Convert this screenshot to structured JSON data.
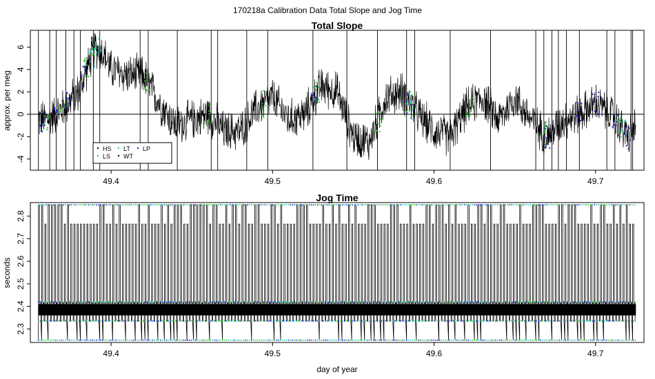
{
  "page_title": "170218a   Calibration Data Total Slope and Jog Time",
  "colors": {
    "HS": "#000000",
    "LS": "#22cc22",
    "LT": "#22cccc",
    "WT": "#000000",
    "LP": "#1a1acc",
    "trace": "#000000"
  },
  "chart_data": [
    {
      "type": "line",
      "title": "Total Slope",
      "xlabel": "",
      "ylabel": "approx. per meg",
      "xlim": [
        49.35,
        49.73
      ],
      "ylim": [
        -5,
        7.5
      ],
      "xticks": [
        49.4,
        49.5,
        49.6,
        49.7
      ],
      "xtick_labels": [
        "49.4",
        "49.5",
        "49.6",
        "49.7"
      ],
      "yticks": [
        -4,
        -2,
        0,
        2,
        4,
        6
      ],
      "ytick_labels": [
        "-4",
        "-2",
        "0",
        "2",
        "4",
        "6"
      ],
      "reference_line_y": 0,
      "legend_position": "bottom-left",
      "legend": [
        {
          "label": "HS",
          "color": "#000000"
        },
        {
          "label": "LS",
          "color": "#22cc22"
        },
        {
          "label": "LT",
          "color": "#22cccc"
        },
        {
          "label": "WT",
          "color": "#000000"
        },
        {
          "label": "LP",
          "color": "#1a1acc"
        }
      ],
      "x_range": [
        49.355,
        49.725
      ],
      "center_curve": {
        "x": [
          49.355,
          49.36,
          49.37,
          49.38,
          49.385,
          49.39,
          49.395,
          49.4,
          49.41,
          49.42,
          49.43,
          49.44,
          49.45,
          49.46,
          49.47,
          49.48,
          49.49,
          49.5,
          49.51,
          49.52,
          49.53,
          49.54,
          49.55,
          49.56,
          49.57,
          49.58,
          49.59,
          49.6,
          49.61,
          49.62,
          49.63,
          49.64,
          49.65,
          49.66,
          49.67,
          49.68,
          49.69,
          49.7,
          49.71,
          49.72,
          49.725
        ],
        "y": [
          -0.5,
          -0.5,
          0.5,
          2.0,
          4.0,
          6.0,
          5.5,
          4.0,
          3.5,
          3.5,
          1.0,
          -1.0,
          -0.5,
          0.0,
          -1.5,
          -1.5,
          0.5,
          1.5,
          -0.5,
          0.0,
          2.5,
          2.0,
          -2.0,
          -2.5,
          1.5,
          2.0,
          0.0,
          -1.5,
          -2.0,
          0.5,
          1.5,
          -0.5,
          1.5,
          -0.5,
          -2.0,
          -0.5,
          0.0,
          1.0,
          0.0,
          -2.0,
          -1.0
        ]
      },
      "noise_amplitude": 1.5,
      "spikes_x": [
        49.355,
        49.362,
        49.366,
        49.372,
        49.377,
        49.381,
        49.389,
        49.393,
        49.418,
        49.423,
        49.441,
        49.462,
        49.466,
        49.484,
        49.497,
        49.525,
        49.546,
        49.565,
        49.583,
        49.588,
        49.61,
        49.635,
        49.663,
        49.668,
        49.673,
        49.677,
        49.682,
        49.69,
        49.707,
        49.712,
        49.722,
        49.723
      ]
    },
    {
      "type": "line",
      "title": "Jog Time",
      "xlabel": "day of year",
      "ylabel": "seconds",
      "xlim": [
        49.35,
        49.73
      ],
      "ylim": [
        2.24,
        2.86
      ],
      "xticks": [
        49.4,
        49.5,
        49.6,
        49.7
      ],
      "xtick_labels": [
        "49.4",
        "49.5",
        "49.6",
        "49.7"
      ],
      "yticks": [
        2.3,
        2.4,
        2.5,
        2.6,
        2.7,
        2.8
      ],
      "ytick_labels": [
        "2.3",
        "2.4",
        "2.5",
        "2.6",
        "2.7",
        "2.8"
      ],
      "x_range": [
        49.355,
        49.725
      ],
      "levels": [
        2.25,
        2.335,
        2.42,
        2.765,
        2.85
      ],
      "band": [
        2.36,
        2.41
      ],
      "cycle_period": 0.002
    }
  ]
}
